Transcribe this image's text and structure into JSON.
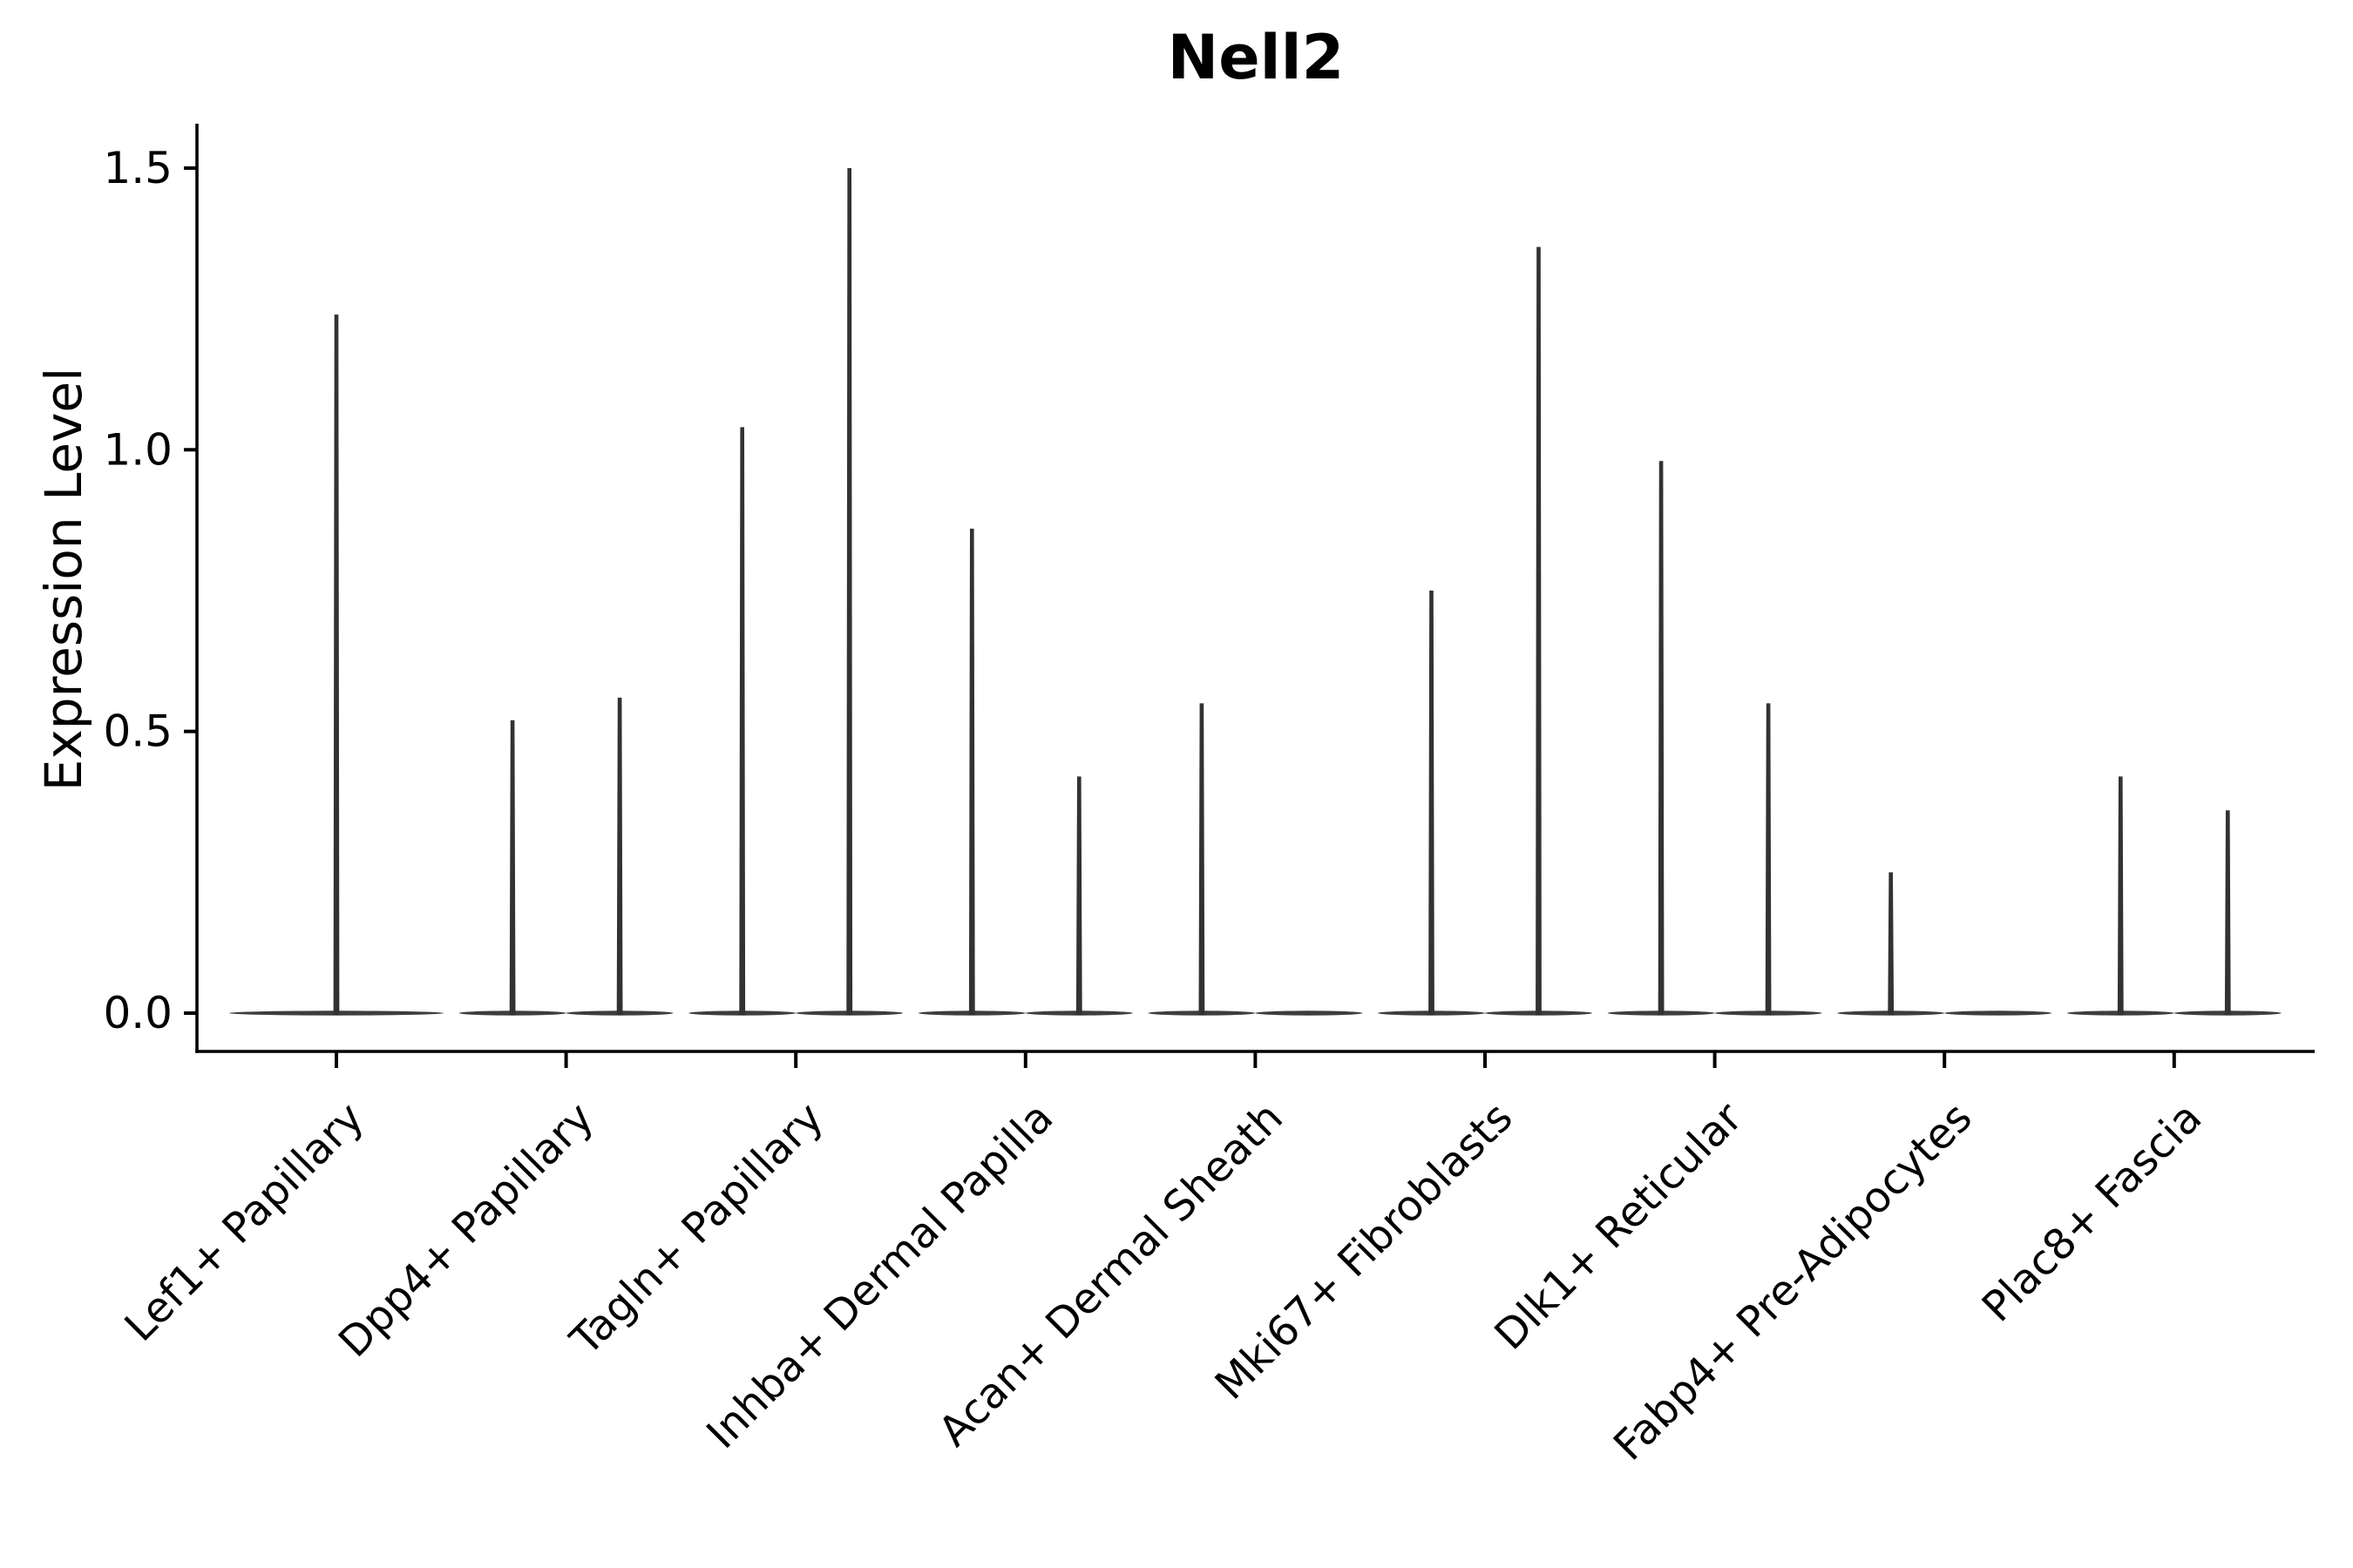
{
  "title": "Nell2",
  "y_axis": {
    "label": "Expression Level",
    "tick_labels": [
      "0.0",
      "0.5",
      "1.0",
      "1.5"
    ]
  },
  "chart_data": {
    "type": "violin",
    "title": "Nell2",
    "xlabel": "",
    "ylabel": "Expression Level",
    "ylim": [
      -0.068,
      1.58
    ],
    "yticks": [
      0.0,
      0.5,
      1.0,
      1.5
    ],
    "grid": false,
    "legend": "none",
    "violin_color": "#323232",
    "baseline_color": "#3d3d3d",
    "axis_color": "#000000",
    "categories": [
      "Lef1+ Papillary",
      "Dpp4+ Papillary",
      "Tagln+ Papillary",
      "Inhba+ Dermal Papilla",
      "Acan+ Dermal Sheath",
      "Mki67+ Fibroblasts",
      "Dlk1+ Reticular",
      "Fabp4+ Pre-Adipocytes",
      "Plac8+ Fascia"
    ],
    "violin_max_values": [
      [
        1.24
      ],
      [
        0.52,
        0.56
      ],
      [
        1.04,
        1.5
      ],
      [
        0.86,
        0.42
      ],
      [
        0.55,
        0.0
      ],
      [
        0.75,
        1.36
      ],
      [
        0.98,
        0.55
      ],
      [
        0.25,
        0.0
      ],
      [
        0.42,
        0.36
      ]
    ],
    "note": "Each violin is flat at 0 (bulk of cells at zero expression) with a thin spike up to its max value; 0.0 means a completely flat violin."
  }
}
